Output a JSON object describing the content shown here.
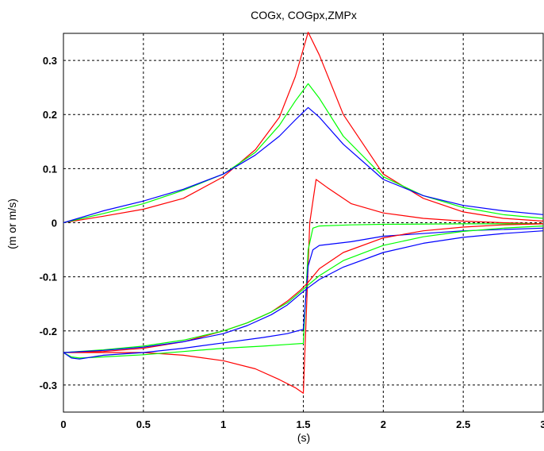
{
  "chart_data": {
    "type": "line",
    "title": "COGx, COGpx,ZMPx",
    "xlabel": "(s)",
    "ylabel": "(m or m/s)",
    "xlim": [
      0,
      3
    ],
    "ylim": [
      -0.35,
      0.35
    ],
    "grid": true,
    "x_ticks": [
      0,
      0.5,
      1,
      1.5,
      2,
      2.5,
      3
    ],
    "x_tick_labels": [
      "0",
      "0.5",
      "1",
      "1.5",
      "2",
      "2.5",
      "3"
    ],
    "y_ticks": [
      0.3,
      0.2,
      0.1,
      0,
      -0.1,
      -0.2,
      -0.3
    ],
    "y_tick_labels": [
      "0.3",
      "0.2",
      "0.1",
      "0",
      "-0.1",
      "-0.2",
      "-0.3"
    ],
    "series": [
      {
        "color": "#ff0000",
        "x": [
          0,
          0.25,
          0.5,
          0.75,
          1.0,
          1.2,
          1.35,
          1.45,
          1.53,
          1.6,
          1.75,
          2.0,
          2.25,
          2.5,
          2.75,
          3.0
        ],
        "y": [
          0,
          0.012,
          0.025,
          0.045,
          0.085,
          0.135,
          0.195,
          0.27,
          0.352,
          0.31,
          0.2,
          0.09,
          0.045,
          0.02,
          0.008,
          0.003
        ]
      },
      {
        "color": "#00ff00",
        "x": [
          0,
          0.25,
          0.5,
          0.75,
          1.0,
          1.2,
          1.35,
          1.45,
          1.53,
          1.6,
          1.75,
          2.0,
          2.25,
          2.5,
          2.75,
          3.0
        ],
        "y": [
          0,
          0.017,
          0.035,
          0.06,
          0.09,
          0.13,
          0.18,
          0.225,
          0.257,
          0.23,
          0.16,
          0.085,
          0.05,
          0.028,
          0.015,
          0.008
        ]
      },
      {
        "color": "#0000ff",
        "x": [
          0,
          0.25,
          0.5,
          0.75,
          1.0,
          1.2,
          1.35,
          1.45,
          1.53,
          1.6,
          1.75,
          2.0,
          2.25,
          2.5,
          2.75,
          3.0
        ],
        "y": [
          0,
          0.022,
          0.04,
          0.062,
          0.09,
          0.125,
          0.16,
          0.19,
          0.213,
          0.195,
          0.145,
          0.08,
          0.05,
          0.032,
          0.022,
          0.015
        ]
      },
      {
        "color": "#ff0000",
        "x": [
          0,
          0.25,
          0.5,
          0.75,
          1.0,
          1.2,
          1.35,
          1.45,
          1.5,
          1.54,
          1.58,
          1.65,
          1.8,
          2.0,
          2.25,
          2.5,
          2.75,
          3.0
        ],
        "y": [
          -0.24,
          -0.24,
          -0.24,
          -0.245,
          -0.255,
          -0.27,
          -0.29,
          -0.305,
          -0.315,
          0.0,
          0.08,
          0.065,
          0.035,
          0.018,
          0.008,
          0.003,
          0.0,
          -0.002
        ]
      },
      {
        "color": "#00ff00",
        "x": [
          0,
          0.05,
          0.1,
          0.25,
          0.5,
          0.75,
          1.0,
          1.25,
          1.4,
          1.5,
          1.53,
          1.56,
          1.6,
          1.8,
          2.0,
          2.5,
          3.0
        ],
        "y": [
          -0.24,
          -0.248,
          -0.25,
          -0.248,
          -0.244,
          -0.238,
          -0.232,
          -0.228,
          -0.225,
          -0.223,
          -0.05,
          -0.01,
          -0.006,
          -0.004,
          -0.003,
          -0.002,
          -0.002
        ]
      },
      {
        "color": "#0000ff",
        "x": [
          0,
          0.05,
          0.1,
          0.25,
          0.5,
          0.75,
          1.0,
          1.25,
          1.4,
          1.5,
          1.53,
          1.56,
          1.6,
          1.8,
          2.0,
          2.5,
          3.0
        ],
        "y": [
          -0.24,
          -0.25,
          -0.252,
          -0.245,
          -0.24,
          -0.232,
          -0.222,
          -0.212,
          -0.205,
          -0.197,
          -0.08,
          -0.05,
          -0.042,
          -0.035,
          -0.025,
          -0.015,
          -0.01
        ]
      },
      {
        "color": "#ff0000",
        "x": [
          0,
          0.25,
          0.5,
          0.75,
          1.0,
          1.15,
          1.3,
          1.4,
          1.48,
          1.53,
          1.6,
          1.75,
          2.0,
          2.25,
          2.5,
          2.75,
          3.0
        ],
        "y": [
          -0.24,
          -0.238,
          -0.232,
          -0.22,
          -0.2,
          -0.185,
          -0.165,
          -0.145,
          -0.125,
          -0.11,
          -0.085,
          -0.055,
          -0.028,
          -0.015,
          -0.008,
          -0.004,
          -0.002
        ]
      },
      {
        "color": "#00ff00",
        "x": [
          0,
          0.25,
          0.5,
          0.75,
          1.0,
          1.15,
          1.3,
          1.4,
          1.48,
          1.53,
          1.6,
          1.75,
          2.0,
          2.25,
          2.5,
          2.75,
          3.0
        ],
        "y": [
          -0.24,
          -0.235,
          -0.228,
          -0.217,
          -0.2,
          -0.185,
          -0.165,
          -0.148,
          -0.128,
          -0.115,
          -0.098,
          -0.07,
          -0.042,
          -0.026,
          -0.016,
          -0.01,
          -0.006
        ]
      },
      {
        "color": "#0000ff",
        "x": [
          0,
          0.25,
          0.5,
          0.75,
          1.0,
          1.15,
          1.3,
          1.4,
          1.48,
          1.53,
          1.6,
          1.75,
          2.0,
          2.25,
          2.5,
          2.75,
          3.0
        ],
        "y": [
          -0.24,
          -0.236,
          -0.23,
          -0.22,
          -0.205,
          -0.19,
          -0.17,
          -0.152,
          -0.132,
          -0.12,
          -0.105,
          -0.082,
          -0.055,
          -0.038,
          -0.027,
          -0.02,
          -0.015
        ]
      }
    ]
  }
}
